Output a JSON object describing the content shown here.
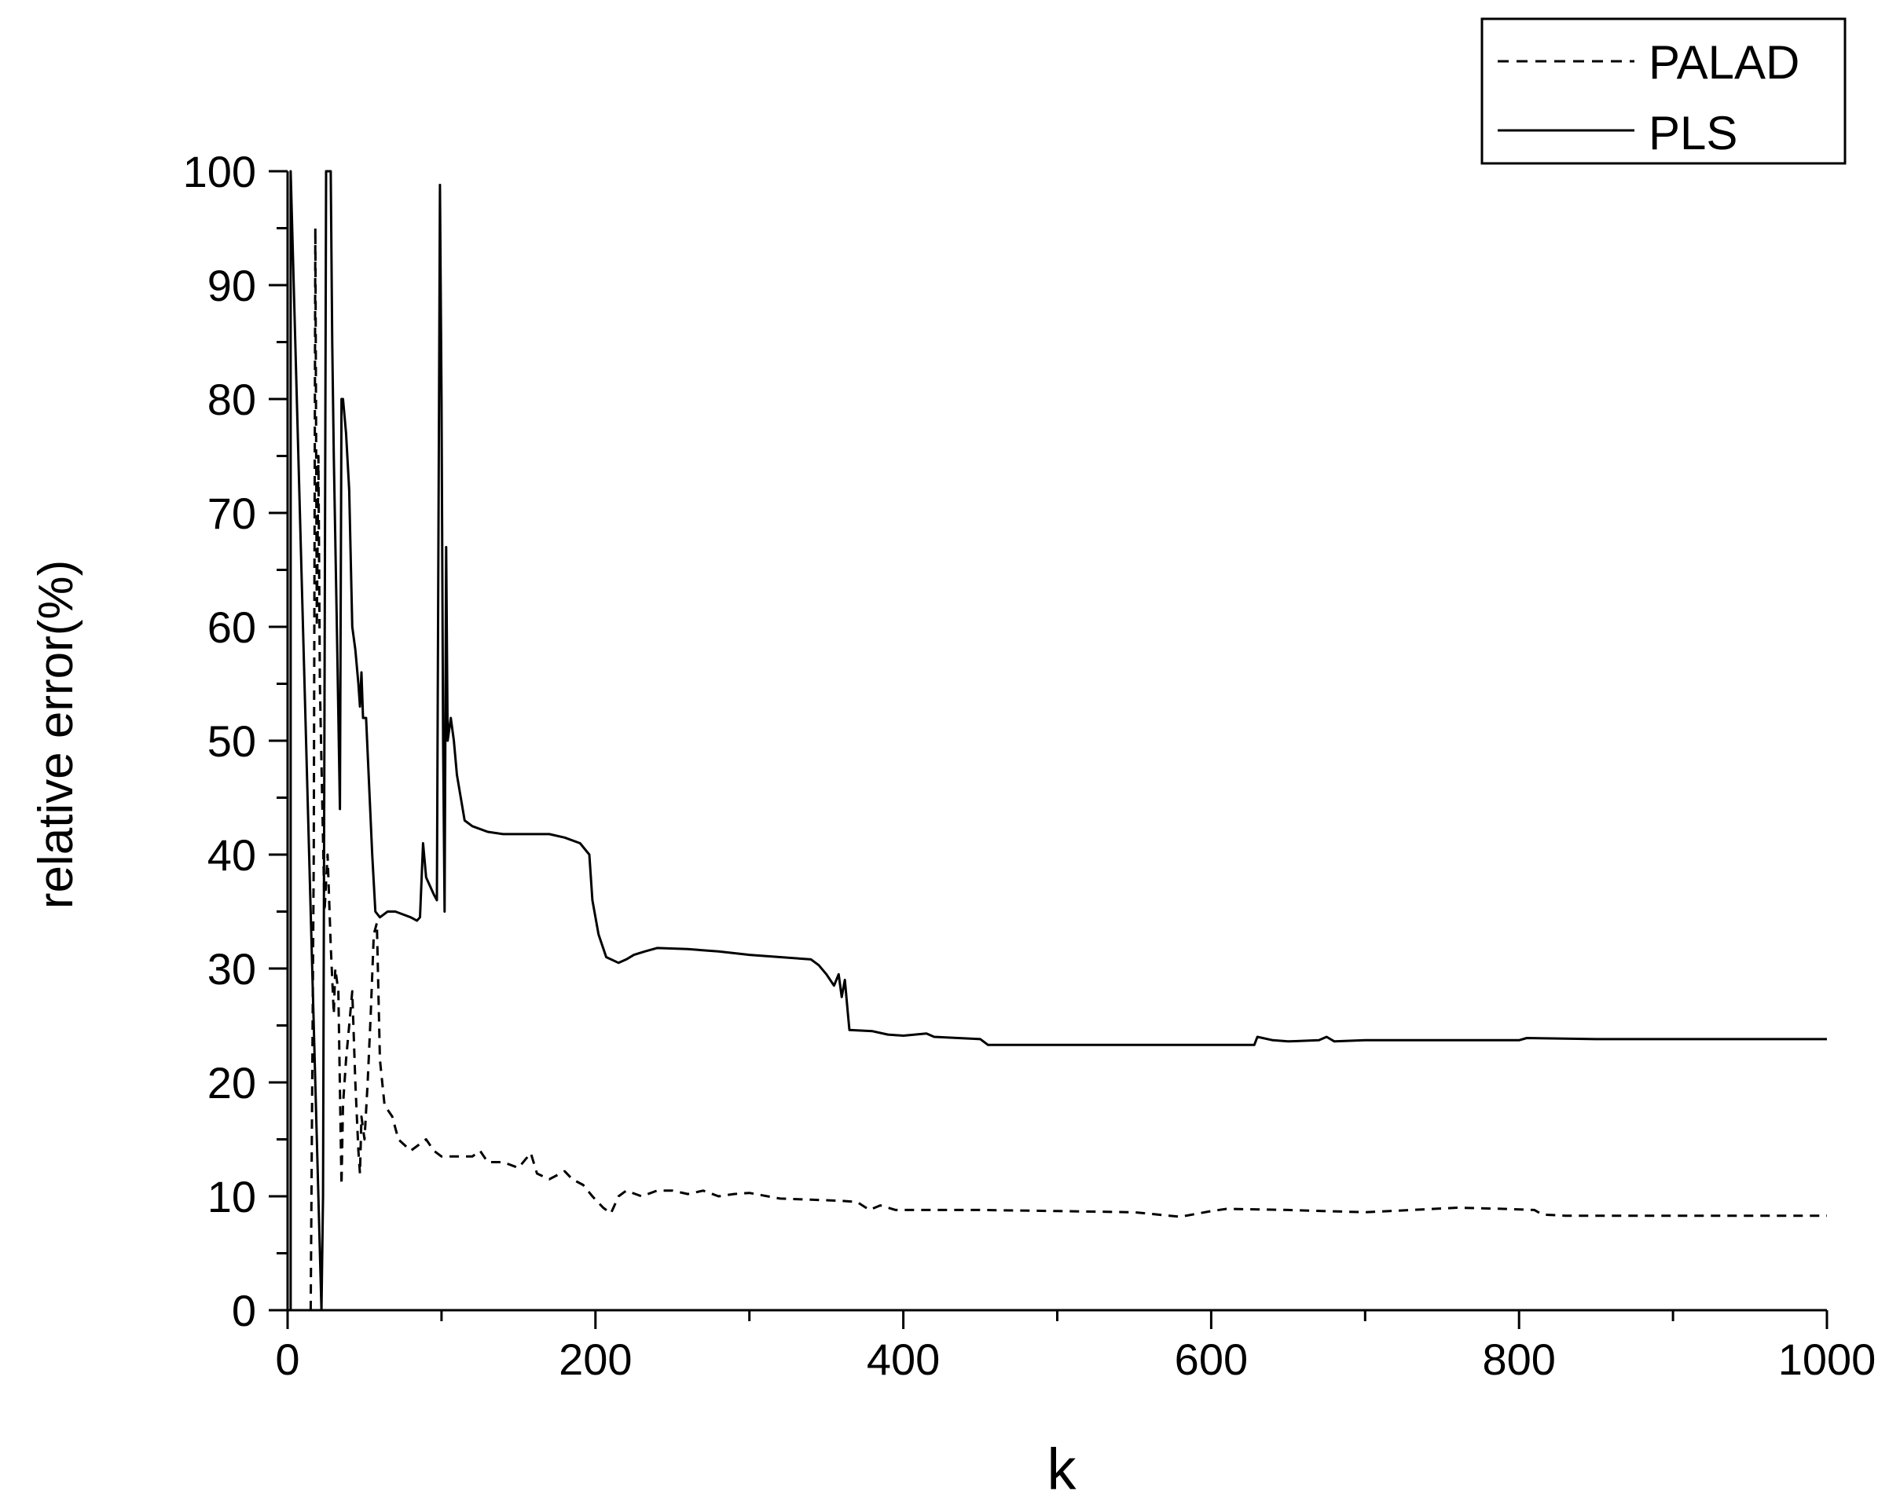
{
  "chart_data": {
    "type": "line",
    "title": "",
    "xlabel": "k",
    "ylabel": "relative error(%)",
    "xlim": [
      0,
      1000
    ],
    "ylim": [
      0,
      100
    ],
    "xticks": [
      0,
      200,
      400,
      600,
      800,
      1000
    ],
    "yticks": [
      0,
      10,
      20,
      30,
      40,
      50,
      60,
      70,
      80,
      90,
      100
    ],
    "grid": false,
    "legend_position": "top-right",
    "series": [
      {
        "name": "PALAD",
        "style": "dashed",
        "color": "#000000",
        "points": [
          [
            15,
            0
          ],
          [
            17,
            40
          ],
          [
            18,
            95
          ],
          [
            19,
            60
          ],
          [
            20,
            75
          ],
          [
            21,
            55
          ],
          [
            22,
            48
          ],
          [
            24,
            35
          ],
          [
            26,
            40
          ],
          [
            28,
            32
          ],
          [
            30,
            26
          ],
          [
            31,
            30
          ],
          [
            33,
            28
          ],
          [
            35,
            11
          ],
          [
            36,
            18
          ],
          [
            38,
            22
          ],
          [
            40,
            25
          ],
          [
            42,
            28
          ],
          [
            44,
            20
          ],
          [
            46,
            14
          ],
          [
            47,
            12
          ],
          [
            48,
            17
          ],
          [
            50,
            15
          ],
          [
            52,
            20
          ],
          [
            54,
            26
          ],
          [
            56,
            33
          ],
          [
            58,
            34
          ],
          [
            60,
            22
          ],
          [
            63,
            18
          ],
          [
            68,
            17
          ],
          [
            72,
            15
          ],
          [
            80,
            14
          ],
          [
            90,
            15
          ],
          [
            95,
            14
          ],
          [
            100,
            13.5
          ],
          [
            110,
            13.5
          ],
          [
            120,
            13.5
          ],
          [
            125,
            14
          ],
          [
            130,
            13
          ],
          [
            140,
            13
          ],
          [
            150,
            12.5
          ],
          [
            158,
            13.8
          ],
          [
            162,
            12
          ],
          [
            170,
            11.5
          ],
          [
            180,
            12.2
          ],
          [
            185,
            11.5
          ],
          [
            192,
            11
          ],
          [
            198,
            10
          ],
          [
            205,
            9
          ],
          [
            210,
            8.5
          ],
          [
            215,
            10
          ],
          [
            220,
            10.5
          ],
          [
            230,
            10
          ],
          [
            240,
            10.5
          ],
          [
            250,
            10.5
          ],
          [
            260,
            10.2
          ],
          [
            270,
            10.5
          ],
          [
            280,
            10
          ],
          [
            290,
            10.2
          ],
          [
            300,
            10.3
          ],
          [
            320,
            9.8
          ],
          [
            340,
            9.7
          ],
          [
            360,
            9.6
          ],
          [
            370,
            9.5
          ],
          [
            378,
            8.8
          ],
          [
            385,
            9.2
          ],
          [
            395,
            8.8
          ],
          [
            420,
            8.8
          ],
          [
            450,
            8.8
          ],
          [
            500,
            8.7
          ],
          [
            550,
            8.6
          ],
          [
            580,
            8.2
          ],
          [
            600,
            8.7
          ],
          [
            610,
            8.9
          ],
          [
            650,
            8.8
          ],
          [
            700,
            8.6
          ],
          [
            730,
            8.8
          ],
          [
            760,
            9.0
          ],
          [
            790,
            8.9
          ],
          [
            810,
            8.8
          ],
          [
            815,
            8.4
          ],
          [
            830,
            8.3
          ],
          [
            900,
            8.3
          ],
          [
            1000,
            8.3
          ]
        ]
      },
      {
        "name": "PLS",
        "style": "solid",
        "color": "#000000",
        "points": [
          [
            2,
            0
          ],
          [
            2,
            100
          ],
          [
            22,
            0
          ],
          [
            23,
            10
          ],
          [
            25,
            100
          ],
          [
            28,
            100
          ],
          [
            29,
            85
          ],
          [
            30,
            75
          ],
          [
            32,
            60
          ],
          [
            34,
            44
          ],
          [
            35,
            80
          ],
          [
            36,
            80
          ],
          [
            38,
            77
          ],
          [
            40,
            72
          ],
          [
            42,
            60
          ],
          [
            44,
            58
          ],
          [
            46,
            55
          ],
          [
            47,
            53
          ],
          [
            48,
            56
          ],
          [
            49,
            52
          ],
          [
            51,
            52
          ],
          [
            53,
            46
          ],
          [
            55,
            40
          ],
          [
            57,
            35
          ],
          [
            60,
            34.5
          ],
          [
            65,
            35
          ],
          [
            70,
            35
          ],
          [
            80,
            34.5
          ],
          [
            84,
            34.2
          ],
          [
            86,
            34.5
          ],
          [
            88,
            41
          ],
          [
            90,
            38
          ],
          [
            95,
            36.5
          ],
          [
            97,
            36
          ],
          [
            99,
            98.8
          ],
          [
            100,
            80
          ],
          [
            101,
            50
          ],
          [
            102,
            35
          ],
          [
            103,
            67
          ],
          [
            104,
            50
          ],
          [
            106,
            52
          ],
          [
            108,
            50
          ],
          [
            110,
            47
          ],
          [
            115,
            43
          ],
          [
            120,
            42.5
          ],
          [
            130,
            42
          ],
          [
            140,
            41.8
          ],
          [
            150,
            41.8
          ],
          [
            160,
            41.8
          ],
          [
            170,
            41.8
          ],
          [
            180,
            41.5
          ],
          [
            190,
            41
          ],
          [
            196,
            40
          ],
          [
            198,
            36
          ],
          [
            202,
            33
          ],
          [
            207,
            31
          ],
          [
            215,
            30.5
          ],
          [
            220,
            30.8
          ],
          [
            225,
            31.2
          ],
          [
            232,
            31.5
          ],
          [
            240,
            31.8
          ],
          [
            260,
            31.7
          ],
          [
            280,
            31.5
          ],
          [
            300,
            31.2
          ],
          [
            320,
            31
          ],
          [
            340,
            30.8
          ],
          [
            345,
            30.3
          ],
          [
            350,
            29.5
          ],
          [
            355,
            28.5
          ],
          [
            358,
            29.5
          ],
          [
            360,
            27.5
          ],
          [
            362,
            29
          ],
          [
            364,
            26
          ],
          [
            365,
            24.6
          ],
          [
            380,
            24.5
          ],
          [
            390,
            24.2
          ],
          [
            400,
            24.1
          ],
          [
            415,
            24.3
          ],
          [
            420,
            24
          ],
          [
            450,
            23.8
          ],
          [
            455,
            23.3
          ],
          [
            500,
            23.3
          ],
          [
            550,
            23.3
          ],
          [
            600,
            23.3
          ],
          [
            628,
            23.3
          ],
          [
            630,
            24
          ],
          [
            640,
            23.7
          ],
          [
            650,
            23.6
          ],
          [
            670,
            23.7
          ],
          [
            675,
            24
          ],
          [
            680,
            23.6
          ],
          [
            700,
            23.7
          ],
          [
            750,
            23.7
          ],
          [
            800,
            23.7
          ],
          [
            805,
            23.9
          ],
          [
            850,
            23.8
          ],
          [
            900,
            23.8
          ],
          [
            1000,
            23.8
          ]
        ]
      }
    ]
  }
}
